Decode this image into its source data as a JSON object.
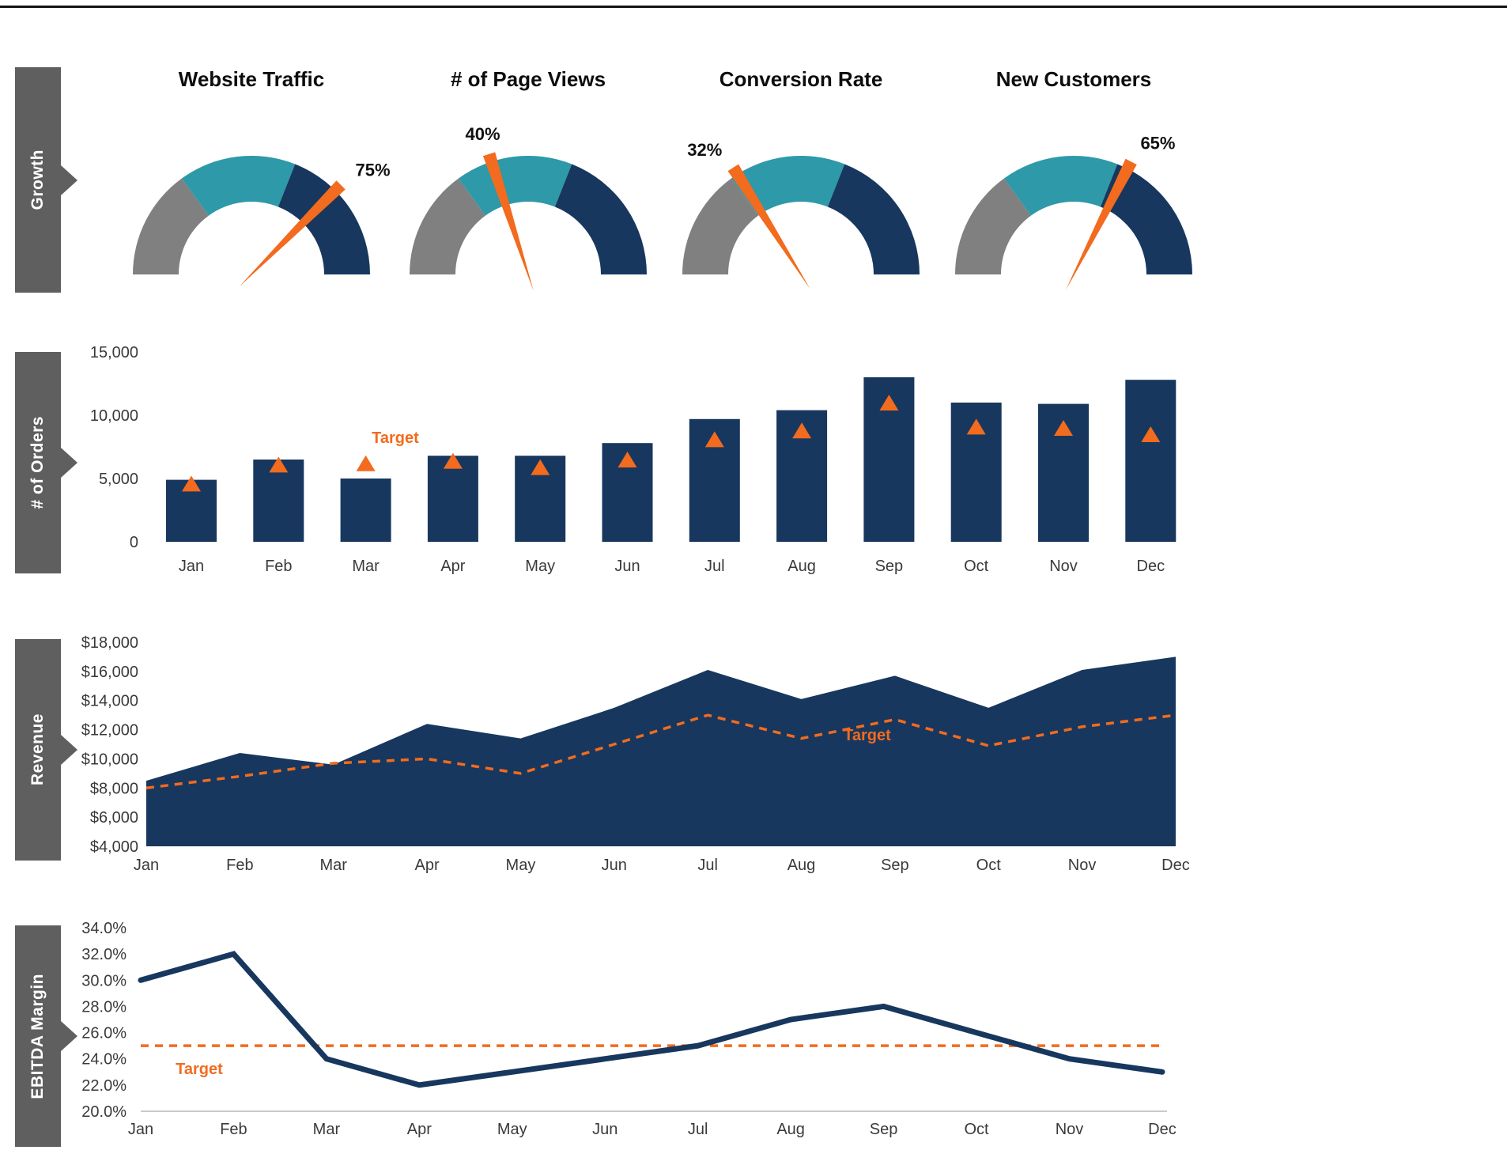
{
  "colors": {
    "navy": "#17375E",
    "teal": "#2E99A8",
    "gray": "#808080",
    "orange": "#F26B1E",
    "ribbon": "#5F5F5F",
    "axis_text": "#3A3A3A",
    "grid": "#C9C9C9"
  },
  "rows": [
    {
      "label": "Growth"
    },
    {
      "label": "# of Orders"
    },
    {
      "label": "Revenue"
    },
    {
      "label": "EBITDA Margin"
    }
  ],
  "chart_data": [
    {
      "type": "gauge",
      "title": "Website Traffic",
      "value": 75,
      "value_label": "75%",
      "segments": [
        {
          "from": 0,
          "to": 30,
          "color": "gray"
        },
        {
          "from": 30,
          "to": 62,
          "color": "teal"
        },
        {
          "from": 62,
          "to": 100,
          "color": "navy"
        }
      ]
    },
    {
      "type": "gauge",
      "title": "# of Page Views",
      "value": 40,
      "value_label": "40%",
      "segments": [
        {
          "from": 0,
          "to": 30,
          "color": "gray"
        },
        {
          "from": 30,
          "to": 62,
          "color": "teal"
        },
        {
          "from": 62,
          "to": 100,
          "color": "navy"
        }
      ]
    },
    {
      "type": "gauge",
      "title": "Conversion Rate",
      "value": 32,
      "value_label": "32%",
      "segments": [
        {
          "from": 0,
          "to": 30,
          "color": "gray"
        },
        {
          "from": 30,
          "to": 62,
          "color": "teal"
        },
        {
          "from": 62,
          "to": 100,
          "color": "navy"
        }
      ]
    },
    {
      "type": "gauge",
      "title": "New Customers",
      "value": 65,
      "value_label": "65%",
      "segments": [
        {
          "from": 0,
          "to": 30,
          "color": "gray"
        },
        {
          "from": 30,
          "to": 62,
          "color": "teal"
        },
        {
          "from": 62,
          "to": 100,
          "color": "navy"
        }
      ]
    },
    {
      "type": "bar",
      "title": "# of Orders",
      "categories": [
        "Jan",
        "Feb",
        "Mar",
        "Apr",
        "May",
        "Jun",
        "Jul",
        "Aug",
        "Sep",
        "Oct",
        "Nov",
        "Dec"
      ],
      "series": [
        {
          "name": "Orders",
          "values": [
            4900,
            6500,
            5000,
            6800,
            6800,
            7800,
            9700,
            10400,
            13000,
            11000,
            10900,
            12800
          ]
        },
        {
          "name": "Target",
          "values": [
            4600,
            6100,
            6200,
            6400,
            5900,
            6500,
            8100,
            8800,
            11000,
            9100,
            9000,
            8500
          ]
        }
      ],
      "ylim": [
        0,
        15000
      ],
      "yticks": [
        {
          "v": 0,
          "label": "0"
        },
        {
          "v": 5000,
          "label": "5,000"
        },
        {
          "v": 10000,
          "label": "10,000"
        },
        {
          "v": 15000,
          "label": "15,000"
        }
      ],
      "target_label": "Target"
    },
    {
      "type": "area",
      "title": "Revenue",
      "categories": [
        "Jan",
        "Feb",
        "Mar",
        "Apr",
        "May",
        "Jun",
        "Jul",
        "Aug",
        "Sep",
        "Oct",
        "Nov",
        "Dec"
      ],
      "series": [
        {
          "name": "Revenue",
          "values": [
            8500,
            10400,
            9600,
            12400,
            11400,
            13500,
            16100,
            14100,
            15700,
            13500,
            16100,
            17000
          ]
        },
        {
          "name": "Target",
          "values": [
            8000,
            8800,
            9700,
            10000,
            9000,
            11000,
            13000,
            11400,
            12700,
            10900,
            12200,
            13000
          ]
        }
      ],
      "ylim": [
        4000,
        18000
      ],
      "yticks": [
        {
          "v": 4000,
          "label": "$4,000"
        },
        {
          "v": 6000,
          "label": "$6,000"
        },
        {
          "v": 8000,
          "label": "$8,000"
        },
        {
          "v": 10000,
          "label": "$10,000"
        },
        {
          "v": 12000,
          "label": "$12,000"
        },
        {
          "v": 14000,
          "label": "$14,000"
        },
        {
          "v": 16000,
          "label": "$16,000"
        },
        {
          "v": 18000,
          "label": "$18,000"
        }
      ],
      "target_label": "Target"
    },
    {
      "type": "line",
      "title": "EBITDA Margin",
      "categories": [
        "Jan",
        "Feb",
        "Mar",
        "Apr",
        "May",
        "Jun",
        "Jul",
        "Aug",
        "Sep",
        "Oct",
        "Nov",
        "Dec"
      ],
      "series": [
        {
          "name": "EBITDA Margin",
          "values": [
            30,
            32,
            24,
            22,
            23,
            24,
            25,
            27,
            28,
            26,
            24,
            23
          ]
        },
        {
          "name": "Target",
          "values": [
            25,
            25,
            25,
            25,
            25,
            25,
            25,
            25,
            25,
            25,
            25,
            25
          ]
        }
      ],
      "ylim": [
        20,
        34
      ],
      "yticks": [
        {
          "v": 20,
          "label": "20.0%"
        },
        {
          "v": 22,
          "label": "22.0%"
        },
        {
          "v": 24,
          "label": "24.0%"
        },
        {
          "v": 26,
          "label": "26.0%"
        },
        {
          "v": 28,
          "label": "28.0%"
        },
        {
          "v": 30,
          "label": "30.0%"
        },
        {
          "v": 32,
          "label": "32.0%"
        },
        {
          "v": 34,
          "label": "34.0%"
        }
      ],
      "target_label": "Target"
    }
  ]
}
